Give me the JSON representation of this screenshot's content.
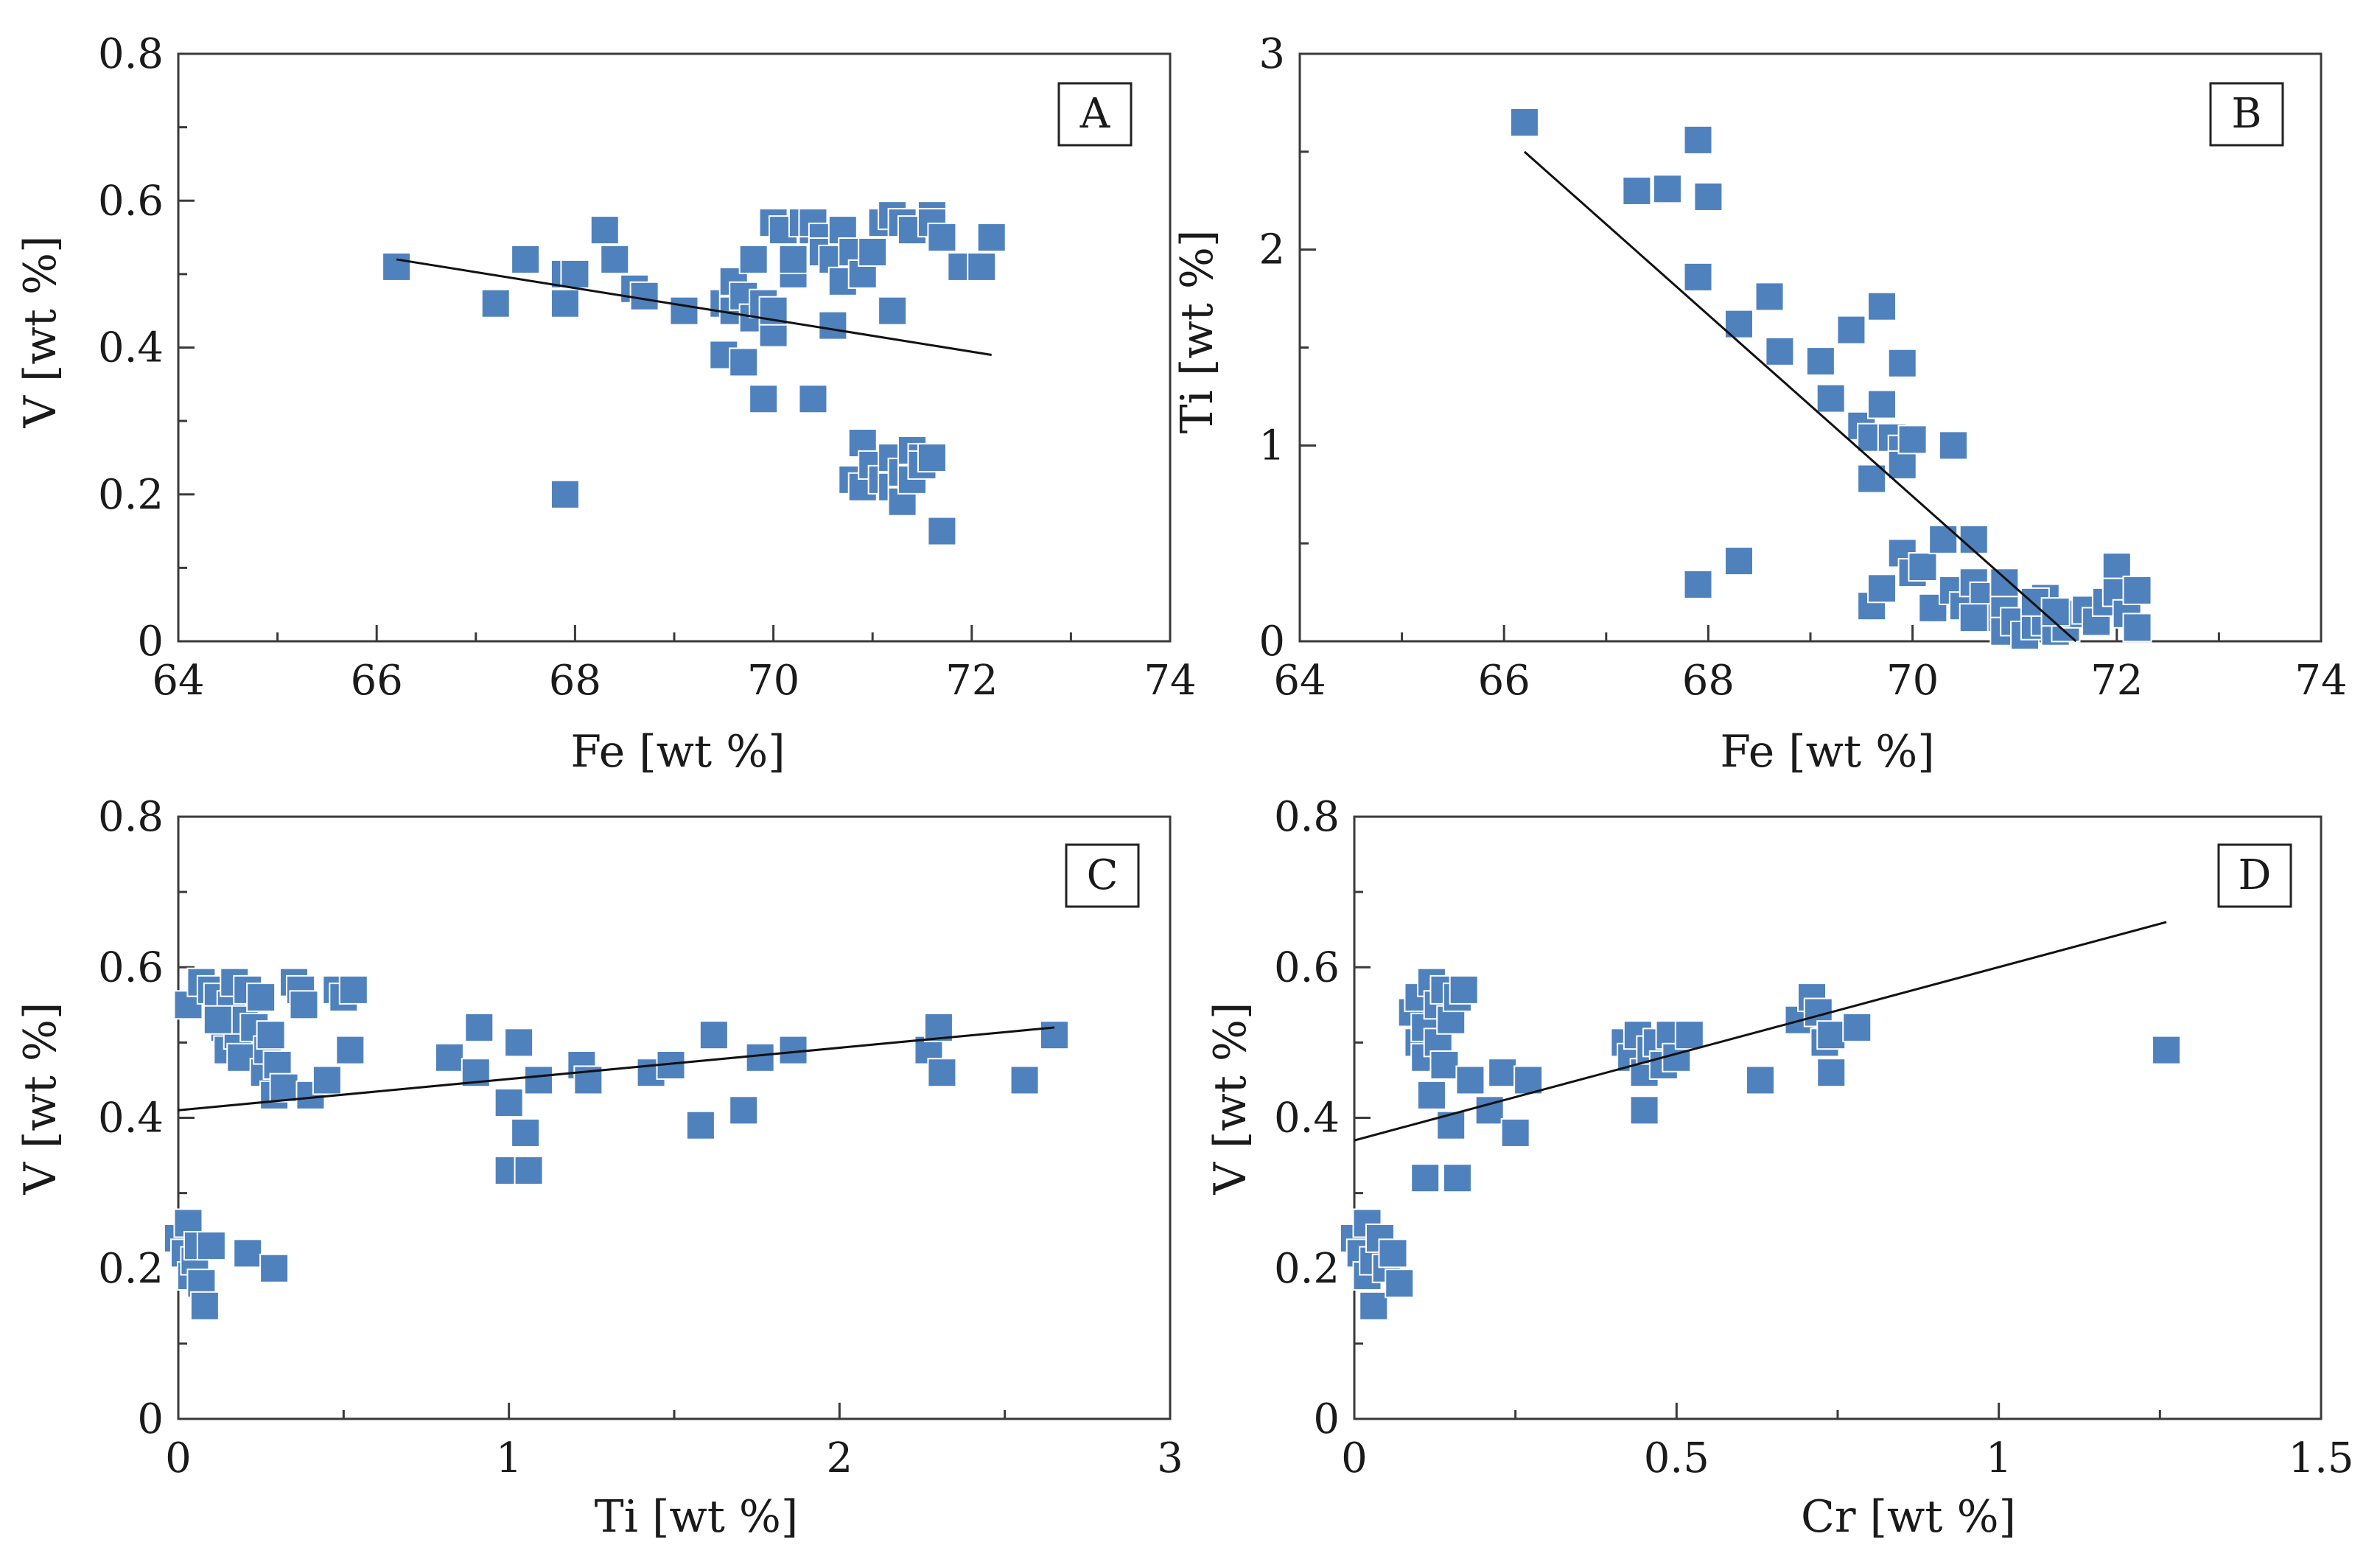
{
  "chart_data": [
    {
      "type": "scatter",
      "panel": "A",
      "xlabel": "Fe [wt %]",
      "ylabel": "V [wt %]",
      "xlim": [
        64,
        74
      ],
      "ylim": [
        0,
        0.8
      ],
      "xticks": [
        64,
        66,
        68,
        70,
        72,
        74
      ],
      "yticks": [
        0,
        0.2,
        0.4,
        0.6,
        0.8
      ],
      "xtick_labels": [
        "64",
        "66",
        "68",
        "70",
        "72",
        "74"
      ],
      "ytick_labels": [
        "0",
        "0.2",
        "0.4",
        "0.6",
        "0.8"
      ],
      "trendline": [
        [
          66.2,
          0.52
        ],
        [
          72.2,
          0.39
        ]
      ],
      "points": [
        [
          66.2,
          0.51
        ],
        [
          67.2,
          0.46
        ],
        [
          67.5,
          0.52
        ],
        [
          67.9,
          0.46
        ],
        [
          67.9,
          0.5
        ],
        [
          68.0,
          0.5
        ],
        [
          68.3,
          0.56
        ],
        [
          68.4,
          0.52
        ],
        [
          68.6,
          0.48
        ],
        [
          68.7,
          0.47
        ],
        [
          69.1,
          0.45
        ],
        [
          69.5,
          0.46
        ],
        [
          69.5,
          0.39
        ],
        [
          69.6,
          0.45
        ],
        [
          69.6,
          0.49
        ],
        [
          69.7,
          0.38
        ],
        [
          69.7,
          0.47
        ],
        [
          69.8,
          0.52
        ],
        [
          69.8,
          0.44
        ],
        [
          69.9,
          0.46
        ],
        [
          69.9,
          0.33
        ],
        [
          70.0,
          0.42
        ],
        [
          70.0,
          0.57
        ],
        [
          70.0,
          0.45
        ],
        [
          70.1,
          0.56
        ],
        [
          70.2,
          0.5
        ],
        [
          70.2,
          0.52
        ],
        [
          70.3,
          0.57
        ],
        [
          70.4,
          0.56
        ],
        [
          70.4,
          0.57
        ],
        [
          70.5,
          0.55
        ],
        [
          70.5,
          0.53
        ],
        [
          70.6,
          0.52
        ],
        [
          70.6,
          0.43
        ],
        [
          70.7,
          0.49
        ],
        [
          70.7,
          0.56
        ],
        [
          70.8,
          0.53
        ],
        [
          70.9,
          0.5
        ],
        [
          71.0,
          0.53
        ],
        [
          71.1,
          0.57
        ],
        [
          71.2,
          0.58
        ],
        [
          71.2,
          0.45
        ],
        [
          71.3,
          0.57
        ],
        [
          71.4,
          0.56
        ],
        [
          71.6,
          0.58
        ],
        [
          71.6,
          0.57
        ],
        [
          71.7,
          0.55
        ],
        [
          71.9,
          0.51
        ],
        [
          72.1,
          0.51
        ],
        [
          72.2,
          0.55
        ],
        [
          70.4,
          0.33
        ],
        [
          67.9,
          0.2
        ],
        [
          70.8,
          0.22
        ],
        [
          70.9,
          0.21
        ],
        [
          70.9,
          0.27
        ],
        [
          71.0,
          0.24
        ],
        [
          71.1,
          0.22
        ],
        [
          71.2,
          0.21
        ],
        [
          71.2,
          0.25
        ],
        [
          71.3,
          0.19
        ],
        [
          71.3,
          0.23
        ],
        [
          71.4,
          0.22
        ],
        [
          71.4,
          0.26
        ],
        [
          71.5,
          0.25
        ],
        [
          71.5,
          0.24
        ],
        [
          71.6,
          0.25
        ],
        [
          71.7,
          0.15
        ]
      ]
    },
    {
      "type": "scatter",
      "panel": "B",
      "xlabel": "Fe [wt %]",
      "ylabel": "Ti [wt %]",
      "xlim": [
        64,
        74
      ],
      "ylim": [
        0,
        3
      ],
      "xticks": [
        64,
        66,
        68,
        70,
        72,
        74
      ],
      "yticks": [
        0,
        1,
        2,
        3
      ],
      "xtick_labels": [
        "64",
        "66",
        "68",
        "70",
        "72",
        "74"
      ],
      "ytick_labels": [
        "0",
        "1",
        "2",
        "3"
      ],
      "trendline": [
        [
          66.2,
          2.5
        ],
        [
          71.6,
          0.0
        ]
      ],
      "points": [
        [
          66.2,
          2.65
        ],
        [
          67.3,
          2.3
        ],
        [
          67.6,
          2.31
        ],
        [
          67.9,
          2.56
        ],
        [
          68.0,
          2.27
        ],
        [
          67.9,
          1.86
        ],
        [
          68.3,
          1.62
        ],
        [
          68.6,
          1.76
        ],
        [
          68.7,
          1.48
        ],
        [
          69.1,
          1.43
        ],
        [
          69.2,
          1.24
        ],
        [
          69.4,
          1.59
        ],
        [
          69.5,
          1.1
        ],
        [
          69.6,
          1.04
        ],
        [
          69.6,
          0.83
        ],
        [
          69.7,
          1.21
        ],
        [
          69.7,
          1.71
        ],
        [
          69.8,
          1.04
        ],
        [
          69.9,
          0.98
        ],
        [
          69.9,
          0.9
        ],
        [
          70.0,
          1.03
        ],
        [
          69.9,
          1.42
        ],
        [
          70.4,
          1.0
        ],
        [
          67.9,
          0.29
        ],
        [
          68.3,
          0.41
        ],
        [
          69.6,
          0.18
        ],
        [
          69.7,
          0.27
        ],
        [
          69.9,
          0.45
        ],
        [
          70.0,
          0.35
        ],
        [
          70.1,
          0.38
        ],
        [
          70.2,
          0.17
        ],
        [
          70.3,
          0.52
        ],
        [
          70.4,
          0.26
        ],
        [
          70.5,
          0.18
        ],
        [
          70.6,
          0.3
        ],
        [
          70.6,
          0.52
        ],
        [
          70.7,
          0.23
        ],
        [
          70.8,
          0.12
        ],
        [
          70.9,
          0.18
        ],
        [
          70.9,
          0.05
        ],
        [
          71.0,
          0.1
        ],
        [
          71.1,
          0.03
        ],
        [
          71.2,
          0.08
        ],
        [
          71.3,
          0.22
        ],
        [
          71.3,
          0.1
        ],
        [
          71.4,
          0.05
        ],
        [
          71.5,
          0.07
        ],
        [
          71.6,
          0.14
        ],
        [
          71.7,
          0.16
        ],
        [
          71.8,
          0.1
        ],
        [
          71.9,
          0.2
        ],
        [
          72.0,
          0.38
        ],
        [
          72.0,
          0.25
        ],
        [
          72.1,
          0.14
        ],
        [
          72.2,
          0.26
        ],
        [
          72.2,
          0.07
        ],
        [
          70.6,
          0.12
        ],
        [
          70.9,
          0.3
        ],
        [
          71.2,
          0.2
        ],
        [
          71.4,
          0.15
        ]
      ]
    },
    {
      "type": "scatter",
      "panel": "C",
      "xlabel": "Ti [wt %]",
      "ylabel": "V [wt %]",
      "xlim": [
        0,
        3
      ],
      "ylim": [
        0,
        0.8
      ],
      "xticks": [
        0,
        1,
        2,
        3
      ],
      "yticks": [
        0,
        0.2,
        0.4,
        0.6,
        0.8
      ],
      "xtick_labels": [
        "0",
        "1",
        "2",
        "3"
      ],
      "ytick_labels": [
        "0",
        "0.2",
        "0.4",
        "0.6",
        "0.8"
      ],
      "trendline": [
        [
          0.0,
          0.41
        ],
        [
          2.65,
          0.52
        ]
      ],
      "points": [
        [
          0.03,
          0.55
        ],
        [
          0.07,
          0.58
        ],
        [
          0.1,
          0.57
        ],
        [
          0.12,
          0.56
        ],
        [
          0.14,
          0.52
        ],
        [
          0.15,
          0.49
        ],
        [
          0.16,
          0.55
        ],
        [
          0.17,
          0.58
        ],
        [
          0.18,
          0.51
        ],
        [
          0.19,
          0.48
        ],
        [
          0.2,
          0.53
        ],
        [
          0.21,
          0.57
        ],
        [
          0.23,
          0.52
        ],
        [
          0.25,
          0.56
        ],
        [
          0.26,
          0.46
        ],
        [
          0.27,
          0.49
        ],
        [
          0.28,
          0.51
        ],
        [
          0.29,
          0.43
        ],
        [
          0.3,
          0.47
        ],
        [
          0.32,
          0.44
        ],
        [
          0.35,
          0.58
        ],
        [
          0.37,
          0.57
        ],
        [
          0.38,
          0.55
        ],
        [
          0.4,
          0.43
        ],
        [
          0.45,
          0.45
        ],
        [
          0.48,
          0.57
        ],
        [
          0.5,
          0.56
        ],
        [
          0.52,
          0.49
        ],
        [
          0.53,
          0.57
        ],
        [
          0.12,
          0.53
        ],
        [
          0.0,
          0.24
        ],
        [
          0.02,
          0.22
        ],
        [
          0.03,
          0.26
        ],
        [
          0.04,
          0.19
        ],
        [
          0.05,
          0.21
        ],
        [
          0.06,
          0.23
        ],
        [
          0.07,
          0.18
        ],
        [
          0.08,
          0.15
        ],
        [
          0.1,
          0.23
        ],
        [
          0.21,
          0.22
        ],
        [
          0.29,
          0.2
        ],
        [
          0.82,
          0.48
        ],
        [
          0.9,
          0.46
        ],
        [
          0.91,
          0.52
        ],
        [
          1.0,
          0.33
        ],
        [
          1.0,
          0.42
        ],
        [
          1.03,
          0.5
        ],
        [
          1.05,
          0.38
        ],
        [
          1.06,
          0.33
        ],
        [
          1.09,
          0.45
        ],
        [
          1.22,
          0.47
        ],
        [
          1.24,
          0.45
        ],
        [
          1.43,
          0.46
        ],
        [
          1.49,
          0.47
        ],
        [
          1.58,
          0.39
        ],
        [
          1.62,
          0.51
        ],
        [
          1.71,
          0.41
        ],
        [
          1.76,
          0.48
        ],
        [
          1.86,
          0.49
        ],
        [
          2.27,
          0.49
        ],
        [
          2.3,
          0.52
        ],
        [
          2.31,
          0.46
        ],
        [
          2.56,
          0.45
        ],
        [
          2.65,
          0.51
        ]
      ]
    },
    {
      "type": "scatter",
      "panel": "D",
      "xlabel": "Cr [wt %]",
      "ylabel": "V [wt %]",
      "xlim": [
        0,
        1.5
      ],
      "ylim": [
        0,
        0.8
      ],
      "xticks": [
        0,
        0.5,
        1,
        1.5
      ],
      "yticks": [
        0,
        0.2,
        0.4,
        0.6,
        0.8
      ],
      "xtick_labels": [
        "0",
        "0.5",
        "1",
        "1.5"
      ],
      "ytick_labels": [
        "0",
        "0.2",
        "0.4",
        "0.6",
        "0.8"
      ],
      "trendline": [
        [
          0.0,
          0.37
        ],
        [
          1.26,
          0.66
        ]
      ],
      "points": [
        [
          0.0,
          0.24
        ],
        [
          0.01,
          0.22
        ],
        [
          0.02,
          0.26
        ],
        [
          0.02,
          0.19
        ],
        [
          0.03,
          0.21
        ],
        [
          0.03,
          0.15
        ],
        [
          0.04,
          0.24
        ],
        [
          0.05,
          0.2
        ],
        [
          0.06,
          0.22
        ],
        [
          0.07,
          0.18
        ],
        [
          0.09,
          0.54
        ],
        [
          0.1,
          0.56
        ],
        [
          0.1,
          0.5
        ],
        [
          0.11,
          0.52
        ],
        [
          0.11,
          0.48
        ],
        [
          0.12,
          0.58
        ],
        [
          0.12,
          0.43
        ],
        [
          0.13,
          0.55
        ],
        [
          0.13,
          0.5
        ],
        [
          0.14,
          0.57
        ],
        [
          0.14,
          0.47
        ],
        [
          0.15,
          0.53
        ],
        [
          0.15,
          0.39
        ],
        [
          0.16,
          0.56
        ],
        [
          0.17,
          0.57
        ],
        [
          0.11,
          0.32
        ],
        [
          0.16,
          0.32
        ],
        [
          0.18,
          0.45
        ],
        [
          0.21,
          0.41
        ],
        [
          0.23,
          0.46
        ],
        [
          0.25,
          0.38
        ],
        [
          0.27,
          0.45
        ],
        [
          0.42,
          0.5
        ],
        [
          0.43,
          0.48
        ],
        [
          0.44,
          0.51
        ],
        [
          0.45,
          0.46
        ],
        [
          0.45,
          0.41
        ],
        [
          0.46,
          0.49
        ],
        [
          0.47,
          0.5
        ],
        [
          0.48,
          0.47
        ],
        [
          0.49,
          0.51
        ],
        [
          0.5,
          0.48
        ],
        [
          0.52,
          0.51
        ],
        [
          0.63,
          0.45
        ],
        [
          0.69,
          0.53
        ],
        [
          0.71,
          0.56
        ],
        [
          0.72,
          0.54
        ],
        [
          0.73,
          0.5
        ],
        [
          0.74,
          0.46
        ],
        [
          0.74,
          0.51
        ],
        [
          0.78,
          0.52
        ],
        [
          1.26,
          0.49
        ]
      ]
    }
  ]
}
